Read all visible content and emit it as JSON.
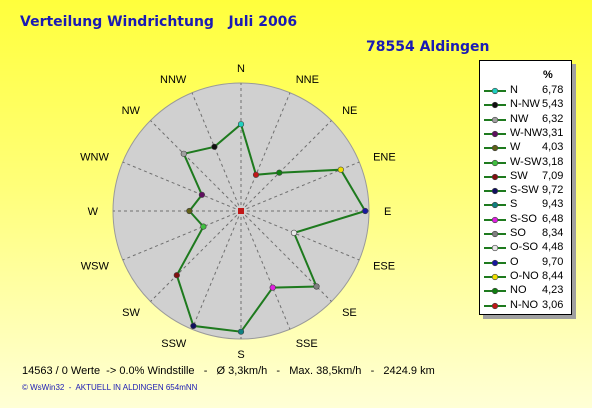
{
  "header": {
    "title": "Verteilung Windrichtung   Juli 2006",
    "location": "78554 Aldingen"
  },
  "chart_data": {
    "type": "radar",
    "directions": [
      "N",
      "NNE",
      "NE",
      "ENE",
      "E",
      "ESE",
      "SE",
      "SSE",
      "S",
      "SSW",
      "SW",
      "WSW",
      "W",
      "WNW",
      "NW",
      "NNW"
    ],
    "series_name": "Windrichtung",
    "rmax": 10,
    "line_color": "#1e7a1e",
    "values": [
      6.78,
      3.06,
      4.23,
      8.44,
      9.7,
      4.48,
      8.34,
      6.48,
      9.43,
      9.72,
      7.09,
      3.18,
      4.03,
      3.31,
      6.32,
      5.43
    ],
    "point_colors": [
      "#20d0c0",
      "#c01818",
      "#108010",
      "#f0e000",
      "#1818a0",
      "#e8e8e8",
      "#808080",
      "#e020e0",
      "#108080",
      "#101060",
      "#801010",
      "#40c040",
      "#606018",
      "#601060",
      "#a0a0a0",
      "#101010"
    ],
    "legend": {
      "unit": "%",
      "entries": [
        {
          "label": "N",
          "value": "6,78",
          "color": "#20d0c0"
        },
        {
          "label": "N-NW",
          "value": "5,43",
          "color": "#101010"
        },
        {
          "label": "NW",
          "value": "6,32",
          "color": "#a0a0a0"
        },
        {
          "label": "W-NW",
          "value": "3,31",
          "color": "#601060"
        },
        {
          "label": "W",
          "value": "4,03",
          "color": "#606018"
        },
        {
          "label": "W-SW",
          "value": "3,18",
          "color": "#40c040"
        },
        {
          "label": "SW",
          "value": "7,09",
          "color": "#801010"
        },
        {
          "label": "S-SW",
          "value": "9,72",
          "color": "#101060"
        },
        {
          "label": "S",
          "value": "9,43",
          "color": "#108080"
        },
        {
          "label": "S-SO",
          "value": "6,48",
          "color": "#e020e0"
        },
        {
          "label": "SO",
          "value": "8,34",
          "color": "#808080"
        },
        {
          "label": "O-SO",
          "value": "4,48",
          "color": "#e8e8e8"
        },
        {
          "label": "O",
          "value": "9,70",
          "color": "#1818a0"
        },
        {
          "label": "O-NO",
          "value": "8,44",
          "color": "#f0e000"
        },
        {
          "label": "NO",
          "value": "4,23",
          "color": "#108010"
        },
        {
          "label": "N-NO",
          "value": "3,06",
          "color": "#c01818"
        }
      ]
    }
  },
  "stats": "14563 / 0 Werte  -> 0.0% Windstille   -   Ø 3,3km/h   -   Max. 38,5km/h   -   2424.9 km",
  "footer": "© WsWin32  -  AKTUELL IN ALDINGEN 654mNN"
}
